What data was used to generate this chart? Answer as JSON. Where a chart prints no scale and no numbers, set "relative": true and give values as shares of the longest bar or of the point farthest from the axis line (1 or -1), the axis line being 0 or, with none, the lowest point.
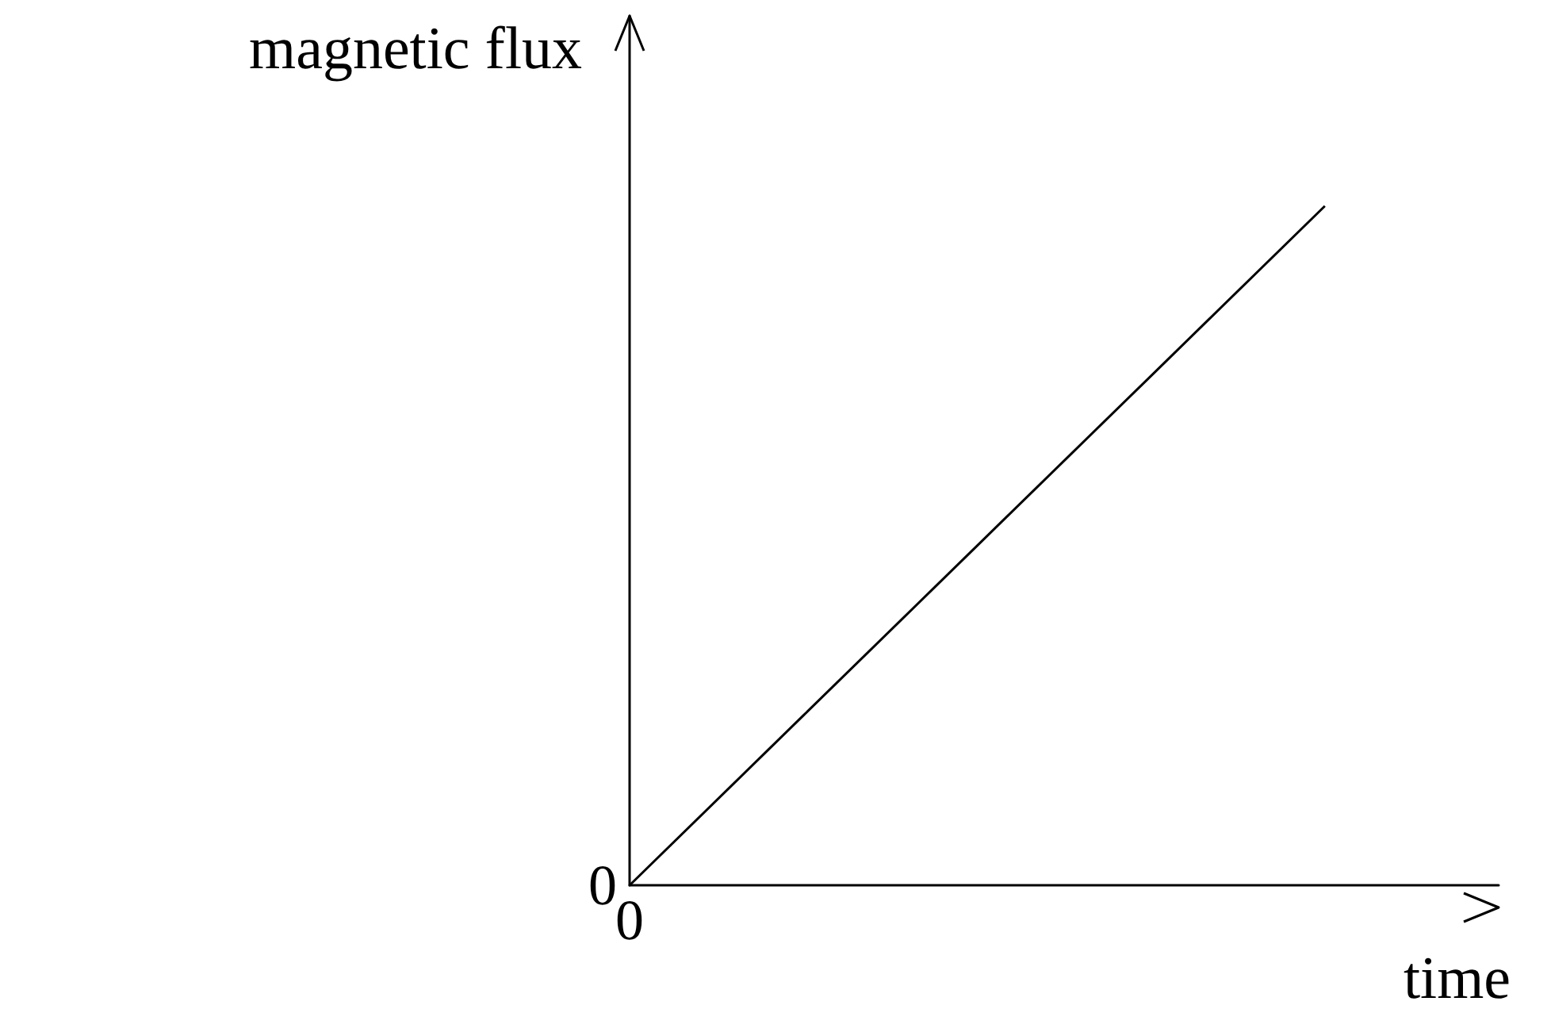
{
  "chart_data": {
    "type": "line",
    "xlabel": "time",
    "ylabel": "magnetic flux",
    "categories": [
      null,
      null,
      null,
      null,
      null,
      null
    ],
    "relative": true,
    "series": [
      {
        "color": "#000000",
        "values": [
          0,
          0.25,
          0.5,
          0.75,
          1,
          null
        ]
      }
    ],
    "annotations": [
      "0",
      "0"
    ],
    "grid": false,
    "marker": "none",
    "line_style": "solid"
  }
}
